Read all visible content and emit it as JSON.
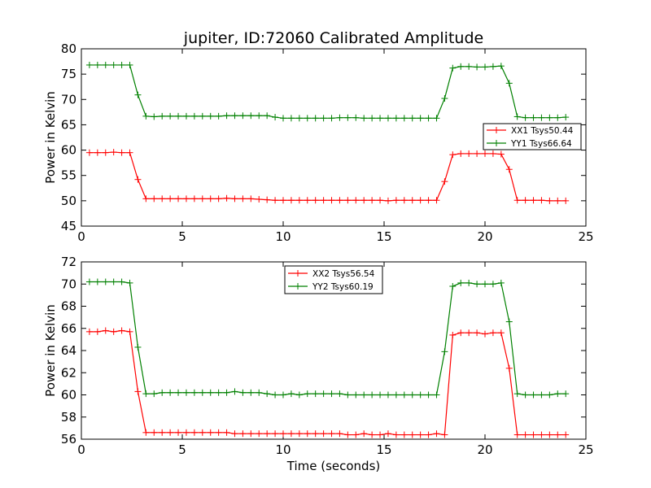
{
  "chart_data": [
    {
      "type": "line",
      "title": "jupiter, ID:72060 Calibrated Amplitude",
      "xlabel": "",
      "ylabel": "Power in Kelvin",
      "xlim": [
        0,
        25
      ],
      "ylim": [
        45,
        80
      ],
      "xticks": [
        0,
        5,
        10,
        15,
        20,
        25
      ],
      "yticks": [
        45,
        50,
        55,
        60,
        65,
        70,
        75,
        80
      ],
      "grid": false,
      "legend_position": "right",
      "x": [
        0.4,
        0.8,
        1.2,
        1.6,
        2.0,
        2.4,
        2.8,
        3.2,
        3.6,
        4.0,
        4.4,
        4.8,
        5.2,
        5.6,
        6.0,
        6.4,
        6.8,
        7.2,
        7.6,
        8.0,
        8.4,
        8.8,
        9.2,
        9.6,
        10.0,
        10.4,
        10.8,
        11.2,
        11.6,
        12.0,
        12.4,
        12.8,
        13.2,
        13.6,
        14.0,
        14.4,
        14.8,
        15.2,
        15.6,
        16.0,
        16.4,
        16.8,
        17.2,
        17.6,
        18.0,
        18.4,
        18.8,
        19.2,
        19.6,
        20.0,
        20.4,
        20.8,
        21.2,
        21.6,
        22.0,
        22.4,
        22.8,
        23.2,
        23.6,
        24.0
      ],
      "series": [
        {
          "name": "XX1 Tsys50.44",
          "color": "#ff0000",
          "values": [
            59.5,
            59.5,
            59.5,
            59.6,
            59.5,
            59.5,
            54.2,
            50.4,
            50.4,
            50.4,
            50.4,
            50.4,
            50.4,
            50.4,
            50.4,
            50.4,
            50.4,
            50.5,
            50.4,
            50.4,
            50.4,
            50.3,
            50.2,
            50.1,
            50.1,
            50.1,
            50.1,
            50.1,
            50.1,
            50.1,
            50.1,
            50.1,
            50.1,
            50.1,
            50.1,
            50.1,
            50.1,
            50.0,
            50.1,
            50.1,
            50.1,
            50.1,
            50.1,
            50.1,
            53.8,
            59.1,
            59.3,
            59.3,
            59.3,
            59.3,
            59.3,
            59.2,
            56.2,
            50.1,
            50.1,
            50.1,
            50.1,
            50.0,
            50.0,
            50.0
          ]
        },
        {
          "name": "YY1 Tsys66.64",
          "color": "#008000",
          "values": [
            76.8,
            76.8,
            76.8,
            76.8,
            76.8,
            76.8,
            70.9,
            66.7,
            66.6,
            66.7,
            66.7,
            66.7,
            66.7,
            66.7,
            66.7,
            66.7,
            66.7,
            66.8,
            66.8,
            66.8,
            66.8,
            66.8,
            66.8,
            66.5,
            66.3,
            66.3,
            66.3,
            66.3,
            66.3,
            66.3,
            66.3,
            66.4,
            66.4,
            66.4,
            66.3,
            66.3,
            66.3,
            66.3,
            66.3,
            66.3,
            66.3,
            66.3,
            66.3,
            66.3,
            70.2,
            76.2,
            76.5,
            76.5,
            76.4,
            76.4,
            76.5,
            76.6,
            73.2,
            66.6,
            66.4,
            66.4,
            66.4,
            66.4,
            66.4,
            66.5
          ]
        }
      ]
    },
    {
      "type": "line",
      "title": "",
      "xlabel": "Time (seconds)",
      "ylabel": "Power in Kelvin",
      "xlim": [
        0,
        25
      ],
      "ylim": [
        56,
        72
      ],
      "xticks": [
        0,
        5,
        10,
        15,
        20,
        25
      ],
      "yticks": [
        56,
        58,
        60,
        62,
        64,
        66,
        68,
        70,
        72
      ],
      "grid": false,
      "legend_position": "top-center",
      "x": [
        0.4,
        0.8,
        1.2,
        1.6,
        2.0,
        2.4,
        2.8,
        3.2,
        3.6,
        4.0,
        4.4,
        4.8,
        5.2,
        5.6,
        6.0,
        6.4,
        6.8,
        7.2,
        7.6,
        8.0,
        8.4,
        8.8,
        9.2,
        9.6,
        10.0,
        10.4,
        10.8,
        11.2,
        11.6,
        12.0,
        12.4,
        12.8,
        13.2,
        13.6,
        14.0,
        14.4,
        14.8,
        15.2,
        15.6,
        16.0,
        16.4,
        16.8,
        17.2,
        17.6,
        18.0,
        18.4,
        18.8,
        19.2,
        19.6,
        20.0,
        20.4,
        20.8,
        21.2,
        21.6,
        22.0,
        22.4,
        22.8,
        23.2,
        23.6,
        24.0
      ],
      "series": [
        {
          "name": "XX2 Tsys56.54",
          "color": "#ff0000",
          "values": [
            65.7,
            65.7,
            65.8,
            65.7,
            65.8,
            65.7,
            60.3,
            56.6,
            56.6,
            56.6,
            56.6,
            56.6,
            56.6,
            56.6,
            56.6,
            56.6,
            56.6,
            56.6,
            56.5,
            56.5,
            56.5,
            56.5,
            56.5,
            56.5,
            56.5,
            56.5,
            56.5,
            56.5,
            56.5,
            56.5,
            56.5,
            56.5,
            56.4,
            56.4,
            56.5,
            56.4,
            56.4,
            56.5,
            56.4,
            56.4,
            56.4,
            56.4,
            56.4,
            56.5,
            56.4,
            65.4,
            65.6,
            65.6,
            65.6,
            65.5,
            65.6,
            65.6,
            62.4,
            56.4,
            56.4,
            56.4,
            56.4,
            56.4,
            56.4,
            56.4
          ]
        },
        {
          "name": "YY2 Tsys60.19",
          "color": "#008000",
          "values": [
            70.2,
            70.2,
            70.2,
            70.2,
            70.2,
            70.1,
            64.3,
            60.1,
            60.1,
            60.2,
            60.2,
            60.2,
            60.2,
            60.2,
            60.2,
            60.2,
            60.2,
            60.2,
            60.3,
            60.2,
            60.2,
            60.2,
            60.1,
            60.0,
            60.0,
            60.1,
            60.0,
            60.1,
            60.1,
            60.1,
            60.1,
            60.1,
            60.0,
            60.0,
            60.0,
            60.0,
            60.0,
            60.0,
            60.0,
            60.0,
            60.0,
            60.0,
            60.0,
            60.0,
            63.9,
            69.8,
            70.1,
            70.1,
            70.0,
            70.0,
            70.0,
            70.1,
            66.6,
            60.1,
            60.0,
            60.0,
            60.0,
            60.0,
            60.1,
            60.1
          ]
        }
      ]
    }
  ]
}
